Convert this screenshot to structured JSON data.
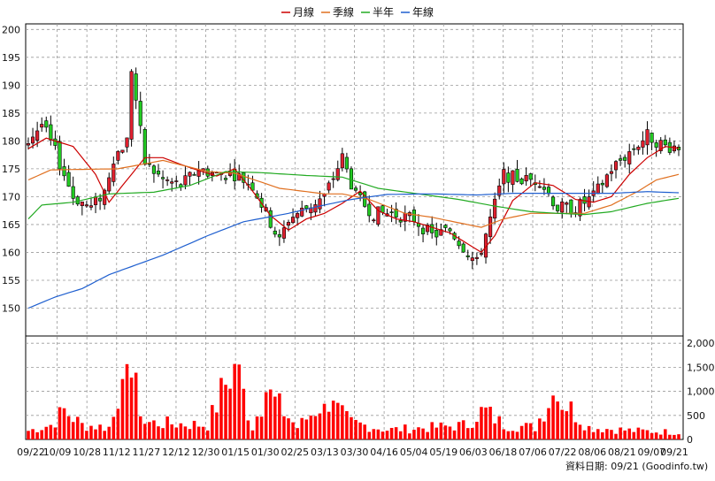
{
  "chart_data": {
    "type": "candlestick",
    "legend": [
      {
        "name": "月線",
        "color": "#cc0000"
      },
      {
        "name": "季線",
        "color": "#e07020"
      },
      {
        "name": "半年",
        "color": "#22aa22"
      },
      {
        "name": "年線",
        "color": "#1f5fcf"
      }
    ],
    "price_axis": {
      "ylim": [
        145,
        201
      ],
      "ticks": [
        150,
        155,
        160,
        165,
        170,
        175,
        180,
        185,
        190,
        195,
        200
      ]
    },
    "volume_axis": {
      "ylim": [
        0,
        2150
      ],
      "ticks": [
        0,
        500,
        1000,
        1500,
        2000
      ],
      "tick_labels": [
        "0",
        "500",
        "1,000",
        "1,500",
        "2,000"
      ]
    },
    "date_labels": [
      "09/22",
      "10/09",
      "10/28",
      "11/12",
      "11/27",
      "12/12",
      "12/30",
      "01/15",
      "01/30",
      "02/25",
      "03/13",
      "03/30",
      "04/16",
      "05/04",
      "05/19",
      "06/03",
      "06/18",
      "07/06",
      "07/22",
      "08/06",
      "08/21",
      "09/07",
      "09/21"
    ],
    "grid": true,
    "footer": "資料日期: 09/21  (Goodinfo.tw)",
    "close_anchors": [
      [
        0,
        180
      ],
      [
        3,
        183
      ],
      [
        6,
        178
      ],
      [
        10,
        170
      ],
      [
        14,
        168
      ],
      [
        17,
        171
      ],
      [
        19,
        177
      ],
      [
        22,
        180
      ],
      [
        23,
        193
      ],
      [
        26,
        176
      ],
      [
        30,
        173
      ],
      [
        34,
        172
      ],
      [
        38,
        175
      ],
      [
        42,
        174
      ],
      [
        46,
        174
      ],
      [
        50,
        172
      ],
      [
        53,
        167
      ],
      [
        56,
        162
      ],
      [
        58,
        166
      ],
      [
        62,
        168
      ],
      [
        66,
        170
      ],
      [
        70,
        177
      ],
      [
        73,
        170
      ],
      [
        77,
        167
      ],
      [
        81,
        167
      ],
      [
        86,
        166
      ],
      [
        90,
        163
      ],
      [
        94,
        164
      ],
      [
        98,
        160
      ],
      [
        100,
        158
      ],
      [
        103,
        166
      ],
      [
        106,
        174
      ],
      [
        110,
        173
      ],
      [
        114,
        173
      ],
      [
        118,
        168
      ],
      [
        122,
        168
      ],
      [
        126,
        170
      ],
      [
        130,
        175
      ],
      [
        134,
        178
      ],
      [
        138,
        181
      ],
      [
        142,
        179
      ],
      [
        145,
        179
      ]
    ],
    "volume_anchors": [
      [
        0,
        180
      ],
      [
        5,
        300
      ],
      [
        8,
        600
      ],
      [
        12,
        300
      ],
      [
        18,
        250
      ],
      [
        20,
        700
      ],
      [
        23,
        1300
      ],
      [
        26,
        350
      ],
      [
        40,
        300
      ],
      [
        46,
        1600
      ],
      [
        50,
        250
      ],
      [
        53,
        1000
      ],
      [
        60,
        250
      ],
      [
        66,
        800
      ],
      [
        72,
        350
      ],
      [
        80,
        200
      ],
      [
        90,
        250
      ],
      [
        98,
        300
      ],
      [
        101,
        650
      ],
      [
        106,
        300
      ],
      [
        113,
        250
      ],
      [
        117,
        1000
      ],
      [
        125,
        250
      ],
      [
        135,
        180
      ],
      [
        145,
        150
      ]
    ],
    "moving_averages": {
      "月線": [
        [
          0,
          178.6
        ],
        [
          4,
          180.5
        ],
        [
          10,
          179
        ],
        [
          15,
          174
        ],
        [
          18,
          169
        ],
        [
          22,
          173
        ],
        [
          26,
          177
        ],
        [
          30,
          177
        ],
        [
          36,
          175.2
        ],
        [
          42,
          173.7
        ],
        [
          46,
          175
        ],
        [
          50,
          171
        ],
        [
          54,
          166.6
        ],
        [
          58,
          164
        ],
        [
          62,
          166
        ],
        [
          66,
          167
        ],
        [
          70,
          168.8
        ],
        [
          74,
          171
        ],
        [
          78,
          167.5
        ],
        [
          82,
          166
        ],
        [
          86,
          165.5
        ],
        [
          90,
          164.5
        ],
        [
          94,
          163.5
        ],
        [
          98,
          161.5
        ],
        [
          101,
          160
        ],
        [
          104,
          163
        ],
        [
          108,
          169.3
        ],
        [
          113,
          172.5
        ],
        [
          117,
          172
        ],
        [
          122,
          169.5
        ],
        [
          126,
          169
        ],
        [
          130,
          170
        ],
        [
          134,
          174
        ],
        [
          138,
          177
        ],
        [
          142,
          179
        ],
        [
          145,
          178.7
        ]
      ],
      "季線": [
        [
          0,
          173
        ],
        [
          5,
          174.8
        ],
        [
          20,
          175
        ],
        [
          30,
          176.5
        ],
        [
          40,
          174.5
        ],
        [
          46,
          174.2
        ],
        [
          56,
          171.5
        ],
        [
          66,
          170.5
        ],
        [
          70,
          170.5
        ],
        [
          76,
          169.5
        ],
        [
          84,
          167
        ],
        [
          90,
          166.3
        ],
        [
          96,
          165.3
        ],
        [
          101,
          164.5
        ],
        [
          106,
          166
        ],
        [
          112,
          167
        ],
        [
          118,
          167
        ],
        [
          124,
          167
        ],
        [
          130,
          168.5
        ],
        [
          136,
          171
        ],
        [
          140,
          173
        ],
        [
          145,
          174
        ]
      ],
      "半年": [
        [
          0,
          166
        ],
        [
          3,
          168.5
        ],
        [
          10,
          169
        ],
        [
          18,
          170.5
        ],
        [
          28,
          170.8
        ],
        [
          36,
          172
        ],
        [
          44,
          174.5
        ],
        [
          52,
          174.3
        ],
        [
          62,
          173.8
        ],
        [
          70,
          173.5
        ],
        [
          78,
          171.5
        ],
        [
          86,
          170.6
        ],
        [
          96,
          169.5
        ],
        [
          104,
          168.3
        ],
        [
          112,
          167.3
        ],
        [
          118,
          167
        ],
        [
          124,
          166.8
        ],
        [
          130,
          167.3
        ],
        [
          138,
          168.8
        ],
        [
          145,
          169.7
        ]
      ],
      "年線": [
        [
          0,
          150
        ],
        [
          6,
          152
        ],
        [
          12,
          153.5
        ],
        [
          18,
          156
        ],
        [
          30,
          159.5
        ],
        [
          40,
          163
        ],
        [
          48,
          165.5
        ],
        [
          58,
          167
        ],
        [
          66,
          168.5
        ],
        [
          72,
          169.5
        ],
        [
          80,
          170.4
        ],
        [
          90,
          170.5
        ],
        [
          100,
          170.3
        ],
        [
          108,
          170.6
        ],
        [
          118,
          170.6
        ],
        [
          130,
          170.6
        ],
        [
          138,
          170.9
        ],
        [
          145,
          170.7
        ]
      ]
    }
  }
}
